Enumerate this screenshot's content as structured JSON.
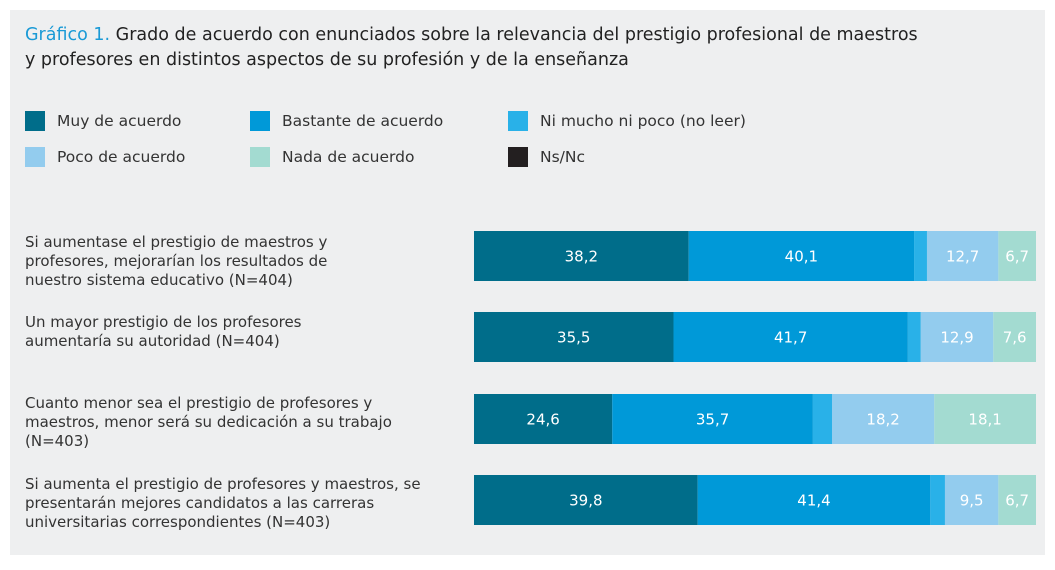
{
  "chart_data": {
    "type": "stacked-bar-horizontal",
    "title_number": "Gráfico 1.",
    "title": "Grado de acuerdo con enunciados sobre la relevancia del prestigio profesional de maestros y profesores en distintos aspectos de su profesión y de la enseñanza",
    "categories": [
      "Si aumentase el prestigio de maestros y profesores, mejorarían los resultados de nuestro sistema educativo (N=404)",
      "Un mayor prestigio de los profesores aumentaría su autoridad (N=404)",
      "Cuanto menor sea el prestigio de profesores y maestros, menor será su dedicación a su trabajo (N=403)",
      "Si aumenta el prestigio de profesores y maestros, se presentarán mejores candidatos a las carreras universitarias correspondientes (N=403)"
    ],
    "xlim": [
      0,
      100
    ],
    "series": [
      {
        "name": "Muy de acuerdo",
        "color": "#006d8a",
        "values": [
          38.2,
          35.5,
          24.6,
          39.8
        ],
        "value_labels": [
          "38,2",
          "35,5",
          "24,6",
          "39,8"
        ]
      },
      {
        "name": "Bastante de acuerdo",
        "color": "#0099d8",
        "values": [
          40.1,
          41.7,
          35.7,
          41.4
        ],
        "value_labels": [
          "40,1",
          "41,7",
          "35,7",
          "41,4"
        ]
      },
      {
        "name": "Ni mucho ni poco (no leer)",
        "color": "#29b1e8",
        "values": [
          2.3,
          2.3,
          3.4,
          2.6
        ]
      },
      {
        "name": "Poco de acuerdo",
        "color": "#93ccee",
        "values": [
          12.7,
          12.9,
          18.2,
          9.5
        ],
        "value_labels": [
          "12,7",
          "12,9",
          "18,2",
          "9,5"
        ]
      },
      {
        "name": "Nada de acuerdo",
        "color": "#a3dbd1",
        "values": [
          6.7,
          7.6,
          18.1,
          6.7
        ],
        "value_labels": [
          "6,7",
          "7,6",
          "18,1",
          "6,7"
        ]
      },
      {
        "name": "Ns/Nc",
        "color": "#231f20",
        "values": [
          0,
          0,
          0,
          0
        ]
      }
    ]
  }
}
